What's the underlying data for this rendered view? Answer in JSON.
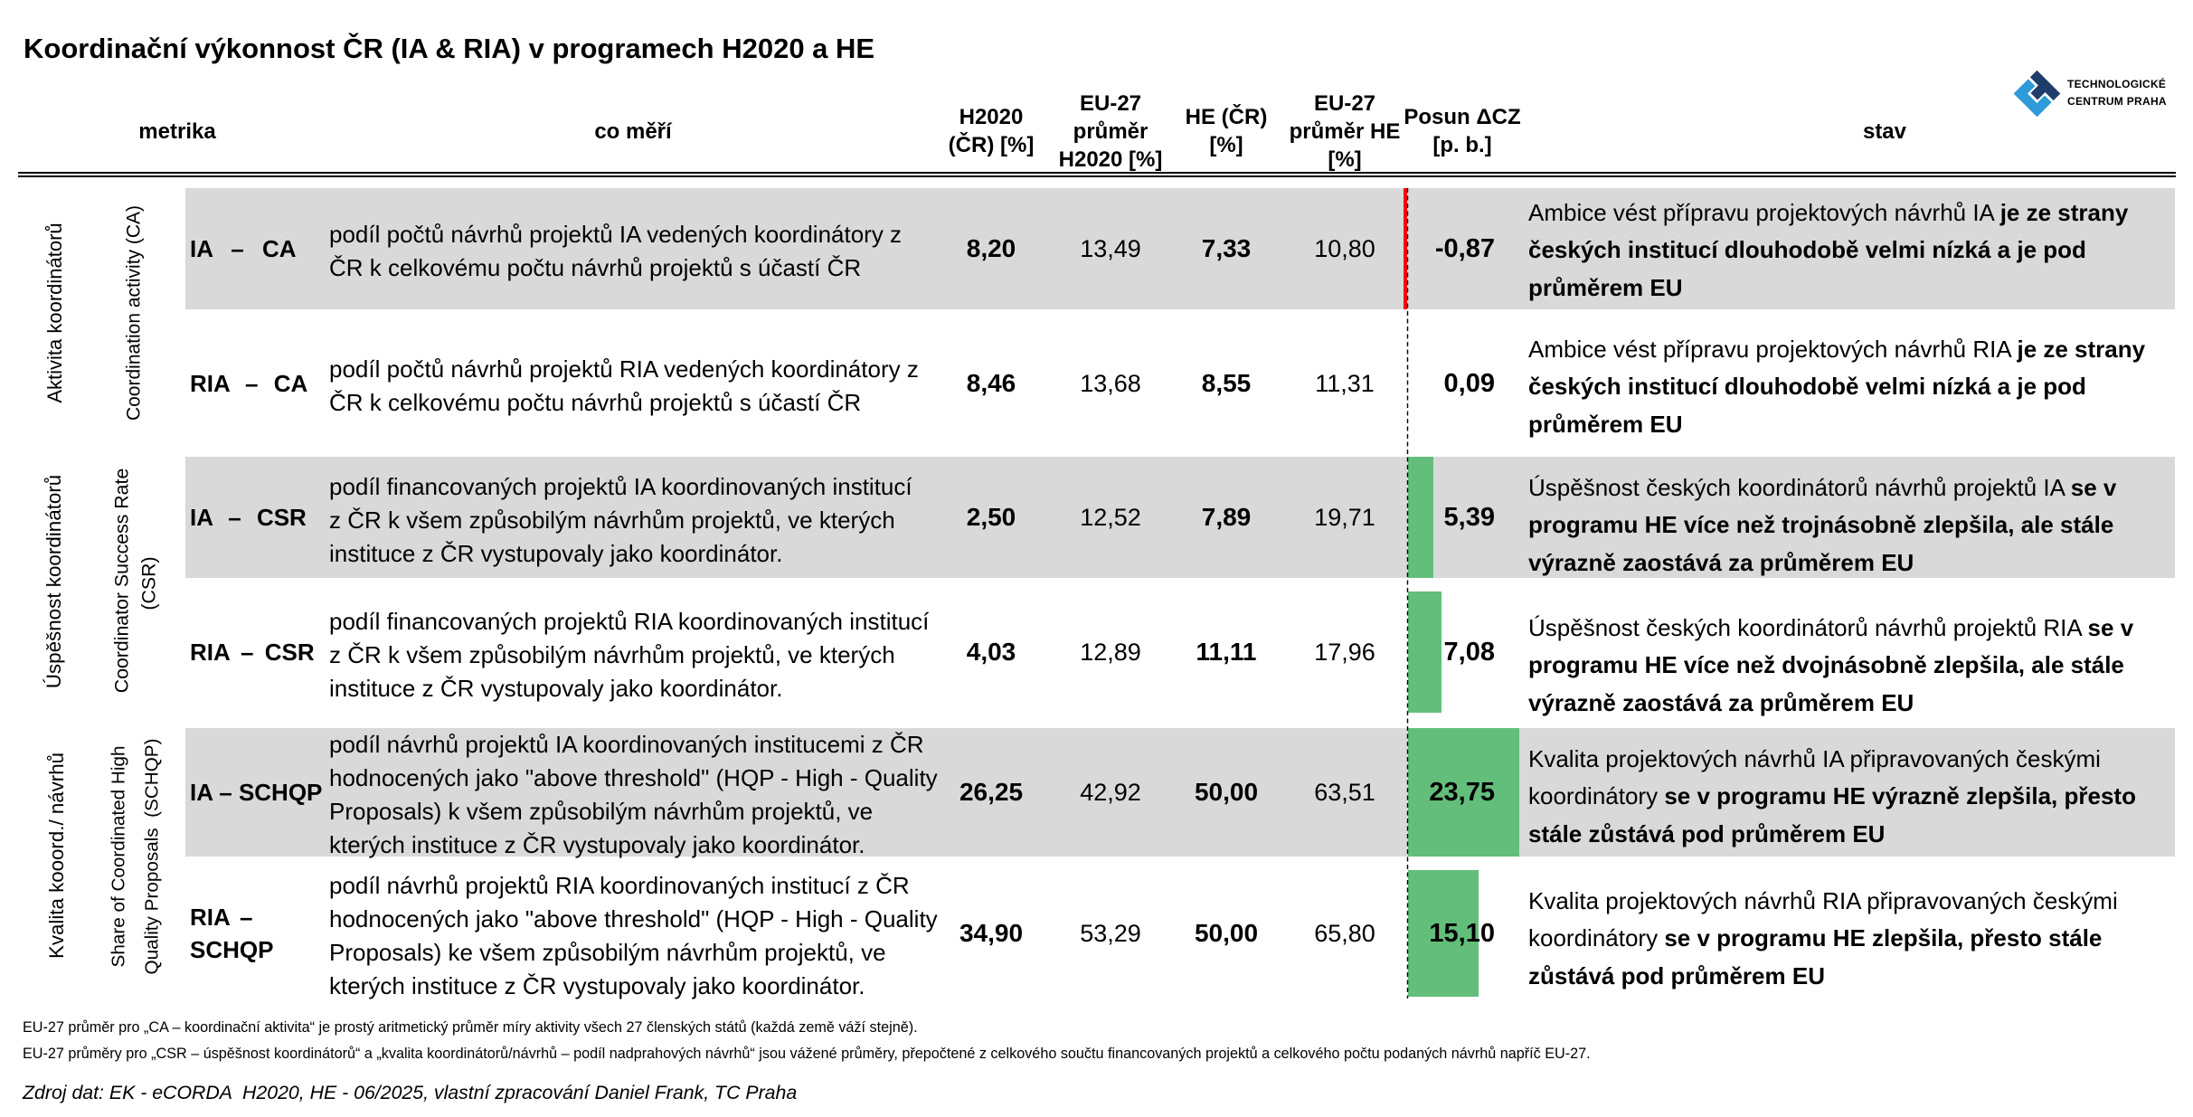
{
  "title": "Koordinační výkonnost ČR (IA & RIA) v programech H2020 a HE",
  "logo": {
    "name": "Technologické centrum Praha",
    "text_line1": "TECHNOLOGICKÉ",
    "text_line2": "CENTRUM PRAHA",
    "color_navy": "#1E3D6B",
    "color_blue": "#2E9AD8"
  },
  "header": {
    "metrika": "metrika",
    "co_meri": "co měří",
    "h2020_cr": "H2020\n(ČR) [%]",
    "eu27_h2020": "EU-27\nprůměr\nH2020 [%]",
    "he_cr": "HE (ČR)\n[%]",
    "eu27_he": "EU-27\nprůměr HE\n[%]",
    "posun": "Posun ΔCZ\n[p. b.]",
    "stav": "stav"
  },
  "groups": [
    {
      "label_cz": "Aktivita koordinátorů",
      "label_en_line1": "Coordination activity (CA)",
      "label_en_line2": ""
    },
    {
      "label_cz": "Úspěšnost koordinátorů",
      "label_en_line1": "Coordinator Success Rate",
      "label_en_line2": "(CSR)"
    },
    {
      "label_cz": "Kvalita kooord./ návrhů",
      "label_en_line1": "Share of Coordinated High",
      "label_en_line2": "Quality Proposals  (SCHQP)"
    }
  ],
  "rows": [
    {
      "metric": "IA – CA",
      "popis": "podíl počtů návrhů projektů IA vedených koordinátory z\nČR k celkovému počtu návrhů projektů s účastí ČR",
      "h2020_cr": "8,20",
      "eu27_h2020": "13,49",
      "he_cr": "7,33",
      "eu27_he": "10,80",
      "posun": "-0,87",
      "stav_normal": "Ambice vést přípravu projektových návrhů IA ",
      "stav_bold": "je ze strany\nčeských institucí dlouhodobě velmi nízká a je pod\nprůměrem EU"
    },
    {
      "metric": "RIA – CA",
      "popis": "podíl počtů návrhů projektů RIA vedených koordinátory z\nČR k celkovému počtu návrhů projektů s účastí ČR",
      "h2020_cr": "8,46",
      "eu27_h2020": "13,68",
      "he_cr": "8,55",
      "eu27_he": "11,31",
      "posun": "0,09",
      "stav_normal": "Ambice vést přípravu projektových návrhů RIA ",
      "stav_bold": "je ze strany\nčeských institucí dlouhodobě velmi nízká a je pod\nprůměrem EU"
    },
    {
      "metric": "IA – CSR",
      "popis": "podíl financovaných projektů IA koordinovaných institucí\nz ČR k všem způsobilým návrhům projektů, ve kterých\ninstituce z ČR vystupovaly jako koordinátor.",
      "h2020_cr": "2,50",
      "eu27_h2020": "12,52",
      "he_cr": "7,89",
      "eu27_he": "19,71",
      "posun": "5,39",
      "stav_normal": "Úspěšnost českých koordinátorů návrhů projektů IA ",
      "stav_bold": "se v\nprogramu HE více než trojnásobně zlepšila, ale stále\nvýrazně zaostává za průměrem EU"
    },
    {
      "metric": "RIA – CSR",
      "popis": "podíl financovaných projektů RIA koordinovaných institucí\nz ČR k všem způsobilým návrhům projektů, ve kterých\ninstituce z ČR vystupovaly jako koordinátor.",
      "h2020_cr": "4,03",
      "eu27_h2020": "12,89",
      "he_cr": "11,11",
      "eu27_he": "17,96",
      "posun": "7,08",
      "stav_normal": "Úspěšnost českých koordinátorů návrhů projektů RIA ",
      "stav_bold": "se v\nprogramu HE více než dvojnásobně zlepšila, ale stále\nvýrazně zaostává za průměrem EU"
    },
    {
      "metric": "IA – SCHQP",
      "popis": "podíl návrhů projektů IA koordinovaných institucemi z ČR\nhodnocených jako \"above threshold\" (HQP - High - Quality\nProposals) k všem způsobilým návrhům projektů, ve\nkterých instituce z ČR vystupovaly jako koordinátor.",
      "h2020_cr": "26,25",
      "eu27_h2020": "42,92",
      "he_cr": "50,00",
      "eu27_he": "63,51",
      "posun": "23,75",
      "stav_normal": "Kvalita projektových návrhů IA připravovaných českými\nkoordinátory ",
      "stav_bold": "se v programu HE výrazně zlepšila, přesto\nstále zůstává pod průměrem EU"
    },
    {
      "metric": "RIA –\nSCHQP",
      "popis": "podíl návrhů projektů RIA koordinovaných institucí z ČR\nhodnocených jako \"above threshold\" (HQP - High - Quality\nProposals) ke všem způsobilým návrhům projektů, ve\nkterých instituce z ČR vystupovaly jako koordinátor.",
      "h2020_cr": "34,90",
      "eu27_h2020": "53,29",
      "he_cr": "50,00",
      "eu27_he": "65,80",
      "posun": "15,10",
      "stav_normal": "Kvalita projektových návrhů RIA připravovaných českými\nkoordinátory ",
      "stav_bold": "se v programu HE zlepšila, přesto stále\nzůstává pod průměrem EU"
    }
  ],
  "footnotes": "EU-27 průměr pro „CA – koordinační aktivita“ je prostý aritmetický průměr míry aktivity všech 27 členských států (každá země váží stejně).\nEU-27 průměry pro „CSR – úspěšnost koordinátorů“ a „kvalita koordinátorů/návrhů – podíl nadprahových návrhů“ jsou vážené průměry, přepočtené z celkového součtu financovaných projektů a celkového počtu podaných návrhů napříč EU-27.",
  "source": "Zdroj dat: EK - eCORDA  H2020, HE - 06/2025, vlastní zpracování Daniel Frank, TC Praha",
  "colors": {
    "band_shaded": "#D9D9D9",
    "bar_positive": "#63BE7B",
    "bar_negative": "#FF0000"
  },
  "chart_data": {
    "type": "table",
    "title": "Koordinační výkonnost ČR (IA & RIA) v programech H2020 a HE",
    "columns": [
      "metrika",
      "co měří",
      "H2020 (ČR) [%]",
      "EU-27 průměr H2020 [%]",
      "HE (ČR) [%]",
      "EU-27 průměr HE [%]",
      "Posun ΔCZ [p. b.]",
      "stav"
    ],
    "row_groups": [
      {
        "cz": "Aktivita koordinátorů",
        "en": "Coordination activity (CA)",
        "metrics": [
          "IA – CA",
          "RIA – CA"
        ]
      },
      {
        "cz": "Úspěšnost koordinátorů",
        "en": "Coordinator Success Rate (CSR)",
        "metrics": [
          "IA – CSR",
          "RIA – CSR"
        ]
      },
      {
        "cz": "Kvalita kooord./ návrhů",
        "en": "Share of Coordinated High Quality Proposals  (SCHQP)",
        "metrics": [
          "IA – SCHQP",
          "RIA – SCHQP"
        ]
      }
    ],
    "rows": [
      {
        "metric": "IA – CA",
        "h2020_cr": 8.2,
        "eu27_h2020": 13.49,
        "he_cr": 7.33,
        "eu27_he": 10.8,
        "posun_pb": -0.87
      },
      {
        "metric": "RIA – CA",
        "h2020_cr": 8.46,
        "eu27_h2020": 13.68,
        "he_cr": 8.55,
        "eu27_he": 11.31,
        "posun_pb": 0.09
      },
      {
        "metric": "IA – CSR",
        "h2020_cr": 2.5,
        "eu27_h2020": 12.52,
        "he_cr": 7.89,
        "eu27_he": 19.71,
        "posun_pb": 5.39
      },
      {
        "metric": "RIA – CSR",
        "h2020_cr": 4.03,
        "eu27_h2020": 12.89,
        "he_cr": 11.11,
        "eu27_he": 17.96,
        "posun_pb": 7.08
      },
      {
        "metric": "IA – SCHQP",
        "h2020_cr": 26.25,
        "eu27_h2020": 42.92,
        "he_cr": 50.0,
        "eu27_he": 63.51,
        "posun_pb": 23.75
      },
      {
        "metric": "RIA – SCHQP",
        "h2020_cr": 34.9,
        "eu27_h2020": 53.29,
        "he_cr": 50.0,
        "eu27_he": 65.8,
        "posun_pb": 15.1
      }
    ],
    "bar_column": {
      "name": "Posun ΔCZ [p. b.]",
      "zero_axis": "dashed",
      "positive_color": "#63BE7B",
      "negative_color": "#FF0000"
    }
  }
}
